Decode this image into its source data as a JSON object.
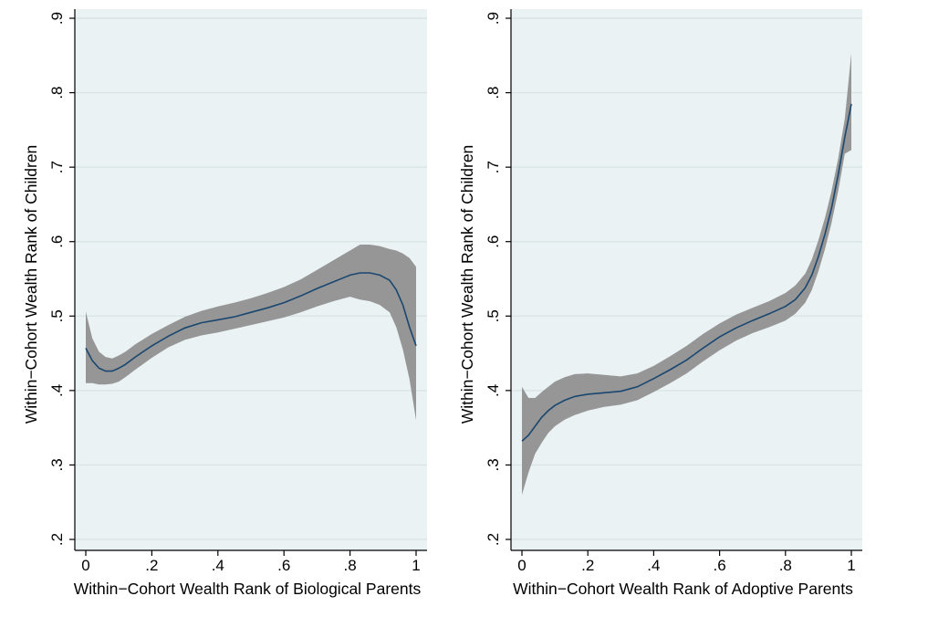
{
  "colors": {
    "plot_background": "#eaf2f3",
    "gridline": "#d7e3e5",
    "confidence_band": "#969696",
    "fitted_line": "#1a476f"
  },
  "chart_data": [
    {
      "type": "line",
      "title": "",
      "xlabel": "Within−Cohort Wealth Rank of Biological Parents",
      "ylabel": "Within−Cohort Wealth Rank of Children",
      "xlim": [
        0,
        1
      ],
      "ylim": [
        0.2,
        0.9
      ],
      "x_ticks": [
        0,
        0.2,
        0.4,
        0.6,
        0.8,
        1
      ],
      "x_tick_labels": [
        "0",
        ".2",
        ".4",
        ".6",
        ".8",
        "1"
      ],
      "y_ticks": [
        0.2,
        0.3,
        0.4,
        0.5,
        0.6,
        0.7,
        0.8,
        0.9
      ],
      "y_tick_labels": [
        ".2",
        ".3",
        ".4",
        ".5",
        ".6",
        ".7",
        ".8",
        ".9"
      ],
      "grid": true,
      "legend": false,
      "x": [
        0,
        0.02,
        0.04,
        0.06,
        0.08,
        0.1,
        0.12,
        0.15,
        0.2,
        0.25,
        0.3,
        0.35,
        0.4,
        0.45,
        0.5,
        0.55,
        0.6,
        0.65,
        0.7,
        0.75,
        0.8,
        0.83,
        0.86,
        0.89,
        0.92,
        0.94,
        0.96,
        0.98,
        1.0
      ],
      "series": [
        {
          "values": [
            0.457,
            0.44,
            0.43,
            0.426,
            0.426,
            0.43,
            0.435,
            0.445,
            0.46,
            0.473,
            0.484,
            0.491,
            0.495,
            0.499,
            0.505,
            0.511,
            0.518,
            0.527,
            0.537,
            0.546,
            0.555,
            0.558,
            0.558,
            0.555,
            0.548,
            0.535,
            0.515,
            0.485,
            0.46
          ],
          "ci_lower": [
            0.41,
            0.41,
            0.408,
            0.408,
            0.409,
            0.412,
            0.418,
            0.428,
            0.444,
            0.458,
            0.468,
            0.474,
            0.478,
            0.483,
            0.488,
            0.493,
            0.498,
            0.505,
            0.513,
            0.52,
            0.526,
            0.522,
            0.52,
            0.515,
            0.505,
            0.485,
            0.455,
            0.415,
            0.36
          ],
          "ci_upper": [
            0.506,
            0.47,
            0.452,
            0.445,
            0.443,
            0.447,
            0.452,
            0.462,
            0.476,
            0.488,
            0.499,
            0.507,
            0.513,
            0.518,
            0.524,
            0.531,
            0.539,
            0.549,
            0.562,
            0.575,
            0.588,
            0.596,
            0.596,
            0.594,
            0.59,
            0.588,
            0.584,
            0.578,
            0.566
          ]
        }
      ]
    },
    {
      "type": "line",
      "title": "",
      "xlabel": "Within−Cohort Wealth Rank of Adoptive Parents",
      "ylabel": "Within−Cohort Wealth Rank of Children",
      "xlim": [
        0,
        1
      ],
      "ylim": [
        0.2,
        0.9
      ],
      "x_ticks": [
        0,
        0.2,
        0.4,
        0.6,
        0.8,
        1
      ],
      "x_tick_labels": [
        "0",
        ".2",
        ".4",
        ".6",
        ".8",
        "1"
      ],
      "y_ticks": [
        0.2,
        0.3,
        0.4,
        0.5,
        0.6,
        0.7,
        0.8,
        0.9
      ],
      "y_tick_labels": [
        ".2",
        ".3",
        ".4",
        ".5",
        ".6",
        ".7",
        ".8",
        ".9"
      ],
      "grid": true,
      "legend": false,
      "x": [
        0,
        0.02,
        0.04,
        0.06,
        0.08,
        0.1,
        0.13,
        0.16,
        0.2,
        0.25,
        0.3,
        0.35,
        0.4,
        0.45,
        0.5,
        0.55,
        0.6,
        0.65,
        0.7,
        0.75,
        0.8,
        0.83,
        0.86,
        0.88,
        0.9,
        0.92,
        0.94,
        0.96,
        0.98,
        1.0
      ],
      "series": [
        {
          "values": [
            0.332,
            0.34,
            0.352,
            0.364,
            0.373,
            0.38,
            0.387,
            0.392,
            0.395,
            0.397,
            0.399,
            0.405,
            0.416,
            0.428,
            0.441,
            0.457,
            0.472,
            0.484,
            0.494,
            0.503,
            0.513,
            0.522,
            0.538,
            0.555,
            0.58,
            0.61,
            0.645,
            0.69,
            0.74,
            0.785
          ],
          "ci_lower": [
            0.26,
            0.29,
            0.315,
            0.33,
            0.343,
            0.352,
            0.361,
            0.367,
            0.373,
            0.378,
            0.381,
            0.387,
            0.398,
            0.41,
            0.423,
            0.439,
            0.454,
            0.467,
            0.477,
            0.485,
            0.494,
            0.503,
            0.518,
            0.535,
            0.56,
            0.59,
            0.625,
            0.668,
            0.718,
            0.723
          ],
          "ci_upper": [
            0.405,
            0.39,
            0.39,
            0.398,
            0.405,
            0.412,
            0.418,
            0.422,
            0.423,
            0.421,
            0.419,
            0.423,
            0.433,
            0.446,
            0.46,
            0.476,
            0.49,
            0.502,
            0.511,
            0.52,
            0.531,
            0.541,
            0.557,
            0.576,
            0.602,
            0.632,
            0.668,
            0.712,
            0.765,
            0.853
          ]
        }
      ]
    }
  ]
}
